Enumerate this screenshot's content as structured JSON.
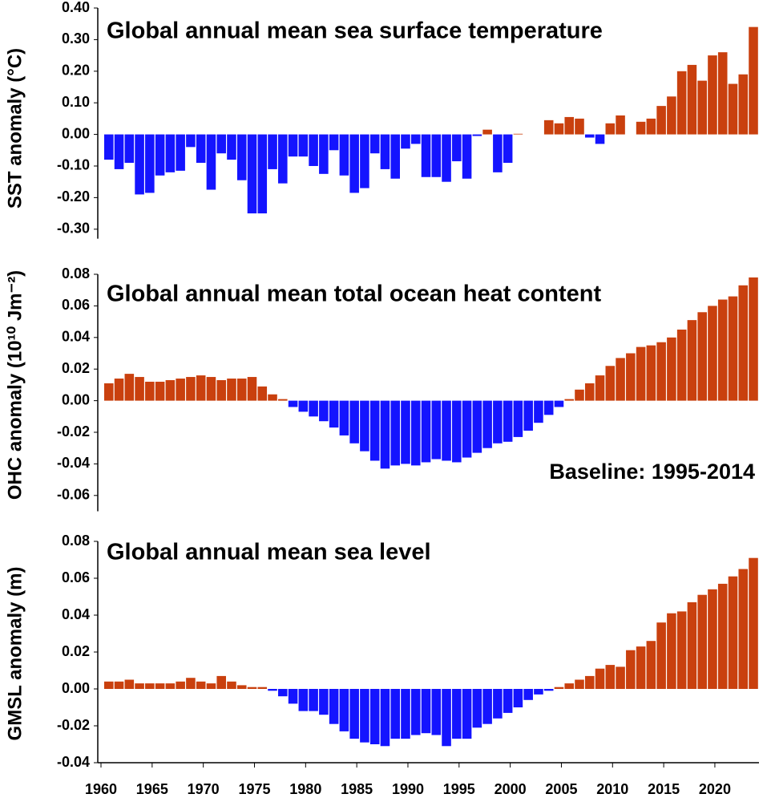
{
  "chart_data": [
    {
      "type": "bar",
      "title": "Global annual mean sea surface temperature",
      "ylabel": "SST anomaly (°C)",
      "x": [
        1960,
        1961,
        1962,
        1963,
        1964,
        1965,
        1966,
        1967,
        1968,
        1969,
        1970,
        1971,
        1972,
        1973,
        1974,
        1975,
        1976,
        1977,
        1978,
        1979,
        1980,
        1981,
        1982,
        1983,
        1984,
        1985,
        1986,
        1987,
        1988,
        1989,
        1990,
        1991,
        1992,
        1993,
        1994,
        1995,
        1996,
        1997,
        1998,
        1999,
        2000,
        2001,
        2002,
        2003,
        2004,
        2005,
        2006,
        2007,
        2008,
        2009,
        2010,
        2011,
        2012,
        2013,
        2014,
        2015,
        2016,
        2017,
        2018,
        2019,
        2020,
        2021,
        2022,
        2023
      ],
      "values": [
        -0.08,
        -0.11,
        -0.09,
        -0.19,
        -0.185,
        -0.13,
        -0.12,
        -0.115,
        -0.04,
        -0.09,
        -0.175,
        -0.06,
        -0.08,
        -0.145,
        -0.25,
        -0.25,
        -0.11,
        -0.155,
        -0.07,
        -0.07,
        -0.1,
        -0.125,
        -0.05,
        -0.13,
        -0.185,
        -0.17,
        -0.06,
        -0.11,
        -0.14,
        -0.045,
        -0.03,
        -0.135,
        -0.135,
        -0.15,
        -0.085,
        -0.14,
        -0.005,
        0.015,
        -0.12,
        -0.09,
        0.002,
        0,
        0,
        0.045,
        0.035,
        0.055,
        0.05,
        -0.01,
        -0.03,
        0.035,
        0.06,
        0,
        0.04,
        0.05,
        0.09,
        0.12,
        0.2,
        0.22,
        0.17,
        0.25,
        0.26,
        0.16,
        0.19,
        0.34
      ],
      "colors": {
        "positive": "#c9400e",
        "negative": "#1414ff"
      },
      "xlim": [
        1960,
        2024
      ],
      "ylim": [
        -0.33,
        0.4
      ],
      "yticks": [
        {
          "value": 0.4,
          "label": "0.40"
        },
        {
          "value": 0.3,
          "label": "0.30"
        },
        {
          "value": 0.2,
          "label": "0.20"
        },
        {
          "value": 0.1,
          "label": "0.10"
        },
        {
          "value": 0,
          "label": "0.00"
        },
        {
          "value": -0.1,
          "label": "-0.10"
        },
        {
          "value": -0.2,
          "label": "-0.20"
        },
        {
          "value": -0.3,
          "label": "-0.30"
        }
      ]
    },
    {
      "type": "bar",
      "title": "Global annual mean total ocean heat content",
      "ylabel": "OHC anomaly (10¹⁰ Jm⁻²)",
      "annotation": "Baseline: 1995-2014",
      "x": [
        1960,
        1961,
        1962,
        1963,
        1964,
        1965,
        1966,
        1967,
        1968,
        1969,
        1970,
        1971,
        1972,
        1973,
        1974,
        1975,
        1976,
        1977,
        1978,
        1979,
        1980,
        1981,
        1982,
        1983,
        1984,
        1985,
        1986,
        1987,
        1988,
        1989,
        1990,
        1991,
        1992,
        1993,
        1994,
        1995,
        1996,
        1997,
        1998,
        1999,
        2000,
        2001,
        2002,
        2003,
        2004,
        2005,
        2006,
        2007,
        2008,
        2009,
        2010,
        2011,
        2012,
        2013,
        2014,
        2015,
        2016,
        2017,
        2018,
        2019,
        2020,
        2021,
        2022,
        2023
      ],
      "values": [
        0.011,
        0.014,
        0.017,
        0.015,
        0.012,
        0.012,
        0.013,
        0.014,
        0.015,
        0.016,
        0.015,
        0.013,
        0.014,
        0.014,
        0.015,
        0.009,
        0.004,
        0.001,
        -0.004,
        -0.007,
        -0.01,
        -0.013,
        -0.017,
        -0.022,
        -0.027,
        -0.032,
        -0.038,
        -0.043,
        -0.041,
        -0.04,
        -0.041,
        -0.039,
        -0.037,
        -0.038,
        -0.039,
        -0.036,
        -0.033,
        -0.03,
        -0.027,
        -0.026,
        -0.023,
        -0.019,
        -0.014,
        -0.009,
        -0.004,
        0.001,
        0.007,
        0.011,
        0.016,
        0.022,
        0.027,
        0.03,
        0.034,
        0.035,
        0.037,
        0.04,
        0.045,
        0.051,
        0.056,
        0.06,
        0.064,
        0.066,
        0.073,
        0.078
      ],
      "colors": {
        "positive": "#c9400e",
        "negative": "#1414ff"
      },
      "xlim": [
        1960,
        2024
      ],
      "ylim": [
        -0.07,
        0.08
      ],
      "yticks": [
        {
          "value": 0.08,
          "label": "0.08"
        },
        {
          "value": 0.06,
          "label": "0.06"
        },
        {
          "value": 0.04,
          "label": "0.04"
        },
        {
          "value": 0.02,
          "label": "0.02"
        },
        {
          "value": 0,
          "label": "0.00"
        },
        {
          "value": -0.02,
          "label": "-0.02"
        },
        {
          "value": -0.04,
          "label": "-0.04"
        },
        {
          "value": -0.06,
          "label": "-0.06"
        }
      ]
    },
    {
      "type": "bar",
      "title": "Global annual mean sea level",
      "ylabel": "GMSL anomaly (m)",
      "x": [
        1960,
        1961,
        1962,
        1963,
        1964,
        1965,
        1966,
        1967,
        1968,
        1969,
        1970,
        1971,
        1972,
        1973,
        1974,
        1975,
        1976,
        1977,
        1978,
        1979,
        1980,
        1981,
        1982,
        1983,
        1984,
        1985,
        1986,
        1987,
        1988,
        1989,
        1990,
        1991,
        1992,
        1993,
        1994,
        1995,
        1996,
        1997,
        1998,
        1999,
        2000,
        2001,
        2002,
        2003,
        2004,
        2005,
        2006,
        2007,
        2008,
        2009,
        2010,
        2011,
        2012,
        2013,
        2014,
        2015,
        2016,
        2017,
        2018,
        2019,
        2020,
        2021,
        2022,
        2023
      ],
      "values": [
        0.004,
        0.004,
        0.005,
        0.003,
        0.003,
        0.003,
        0.003,
        0.004,
        0.006,
        0.004,
        0.003,
        0.007,
        0.004,
        0.002,
        0.001,
        0.001,
        -0.001,
        -0.004,
        -0.008,
        -0.012,
        -0.012,
        -0.014,
        -0.019,
        -0.023,
        -0.027,
        -0.029,
        -0.03,
        -0.031,
        -0.027,
        -0.027,
        -0.025,
        -0.024,
        -0.025,
        -0.031,
        -0.027,
        -0.027,
        -0.021,
        -0.019,
        -0.016,
        -0.013,
        -0.01,
        -0.006,
        -0.003,
        -0.001,
        0.001,
        0.003,
        0.005,
        0.007,
        0.011,
        0.013,
        0.012,
        0.021,
        0.023,
        0.026,
        0.036,
        0.041,
        0.042,
        0.047,
        0.051,
        0.054,
        0.057,
        0.061,
        0.065,
        0.071
      ],
      "colors": {
        "positive": "#c9400e",
        "negative": "#1414ff"
      },
      "xlim": [
        1960,
        2024
      ],
      "ylim": [
        -0.04,
        0.08
      ],
      "yticks": [
        {
          "value": 0.08,
          "label": "0.08"
        },
        {
          "value": 0.06,
          "label": "0.06"
        },
        {
          "value": 0.04,
          "label": "0.04"
        },
        {
          "value": 0.02,
          "label": "0.02"
        },
        {
          "value": 0,
          "label": "0.00"
        },
        {
          "value": -0.02,
          "label": "-0.02"
        },
        {
          "value": -0.04,
          "label": "-0.04"
        }
      ],
      "xticks": [
        1960,
        1965,
        1970,
        1975,
        1980,
        1985,
        1990,
        1995,
        2000,
        2005,
        2010,
        2015,
        2020
      ]
    }
  ]
}
